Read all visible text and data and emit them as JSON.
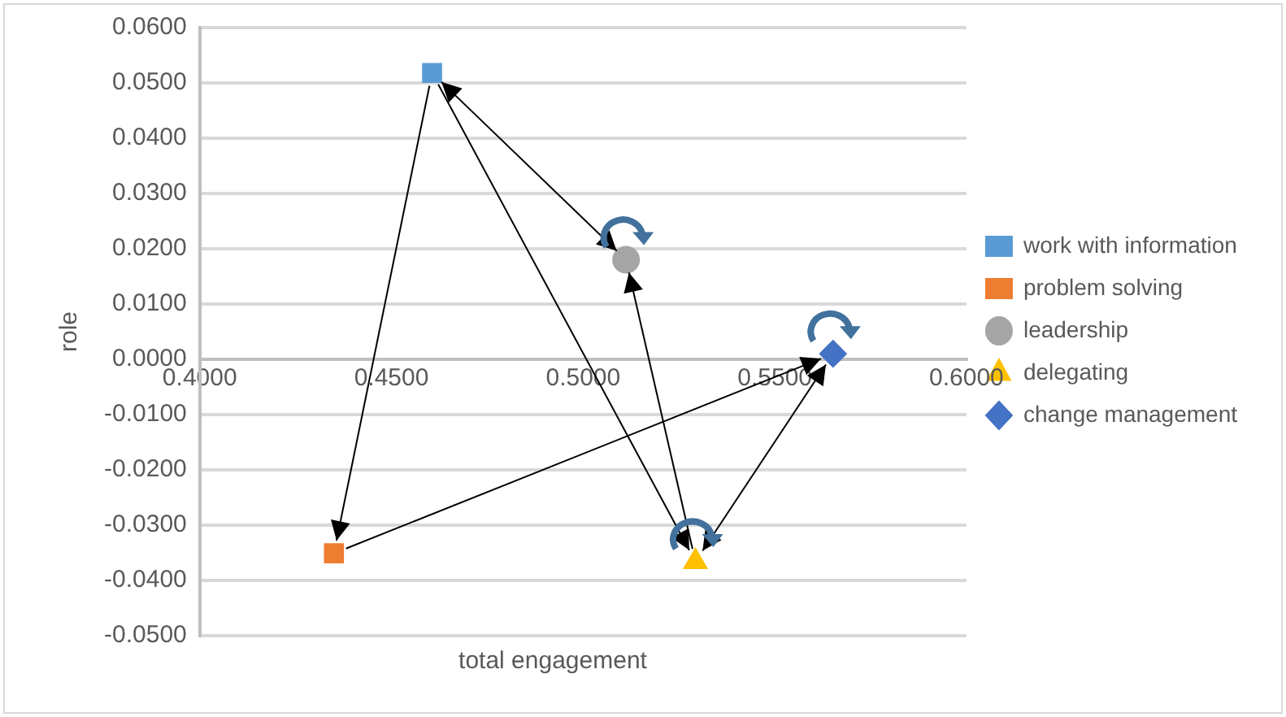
{
  "chart_data": {
    "type": "scatter",
    "xlabel": "total engagement",
    "ylabel": "role",
    "series": [
      {
        "name": "work with information",
        "color": "#5b9bd5",
        "marker": "square",
        "x": [
          0.4606
        ],
        "values": [
          0.0518
        ]
      },
      {
        "name": "problem solving",
        "color": "#ed7d31",
        "marker": "square",
        "x": [
          0.435
        ],
        "values": [
          -0.0351
        ]
      },
      {
        "name": "leadership",
        "color": "#a5a5a5",
        "marker": "circle",
        "x": [
          0.5112
        ],
        "values": [
          0.018
        ]
      },
      {
        "name": "delegating",
        "color": "#ffc000",
        "marker": "triangle",
        "x": [
          0.5293
        ],
        "values": [
          -0.0366
        ]
      },
      {
        "name": "change management",
        "color": "#4472c4",
        "marker": "diamond",
        "x": [
          0.5652
        ],
        "values": [
          0.001
        ]
      }
    ],
    "xlim": [
      0.4,
      0.6
    ],
    "xticks": [
      {
        "value": 0.4,
        "label": "0.4000"
      },
      {
        "value": 0.45,
        "label": "0.4500"
      },
      {
        "value": 0.5,
        "label": "0.5000"
      },
      {
        "value": 0.55,
        "label": "0.5500"
      },
      {
        "value": 0.6,
        "label": "0.6000"
      }
    ],
    "ylim": [
      -0.05,
      0.06
    ],
    "yticks": [
      {
        "value": -0.05,
        "label": "-0.0500"
      },
      {
        "value": -0.04,
        "label": "-0.0400"
      },
      {
        "value": -0.03,
        "label": "-0.0300"
      },
      {
        "value": -0.02,
        "label": "-0.0200"
      },
      {
        "value": -0.01,
        "label": "-0.0100"
      },
      {
        "value": 0,
        "label": "0.0000"
      },
      {
        "value": 0.01,
        "label": "0.0100"
      },
      {
        "value": 0.02,
        "label": "0.0200"
      },
      {
        "value": 0.03,
        "label": "0.0300"
      },
      {
        "value": 0.04,
        "label": "0.0400"
      },
      {
        "value": 0.05,
        "label": "0.0500"
      },
      {
        "value": 0.06,
        "label": "0.0600"
      }
    ],
    "grid": "y",
    "legend": "right"
  }
}
